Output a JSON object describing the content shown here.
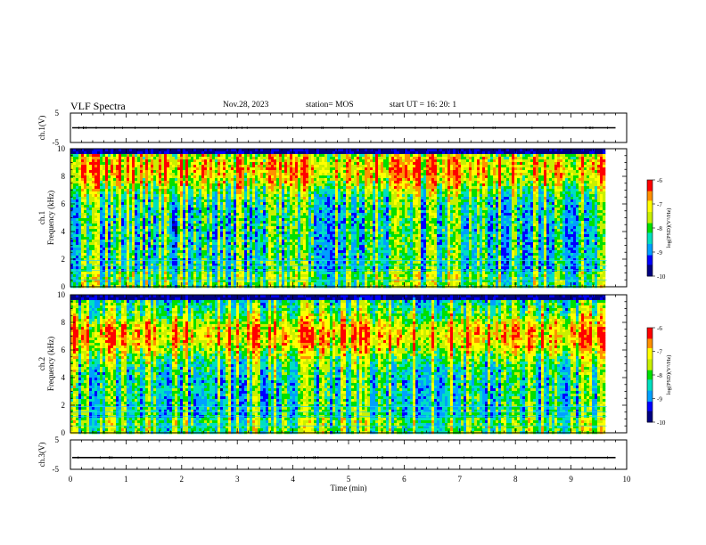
{
  "header": {
    "title": "VLF Spectra",
    "date": "Nov.28, 2023",
    "station": "station= MOS",
    "start": "start  UT =   16: 20: 1"
  },
  "chart_data": {
    "type": "heatmap",
    "xlabel": "Time  (min)",
    "xlim": [
      0,
      10
    ],
    "xticks": [
      "0",
      "1",
      "2",
      "3",
      "4",
      "5",
      "6",
      "7",
      "8",
      "9",
      "10"
    ],
    "data_end_min": 9.8,
    "panels": [
      {
        "id": "ch1v",
        "type": "line",
        "ylabel": "ch.1(V)",
        "ylim": [
          -5,
          5
        ],
        "yticks": [
          "5",
          "-5"
        ],
        "trace_level": 0
      },
      {
        "id": "ch1",
        "type": "heatmap",
        "ylabel_lines": [
          "ch.1",
          "Frequency  (kHz)"
        ],
        "ylim": [
          0,
          10
        ],
        "yticks": [
          "0",
          "2",
          "4",
          "6",
          "8",
          "10"
        ],
        "colorbar_label": "log(PSD)(V²/Hz)",
        "colorbar_range": [
          -10,
          -6
        ],
        "colorbar_ticks": [
          "-6",
          "-7",
          "-8",
          "-9",
          "-10"
        ],
        "power_peak_khz": 8.5,
        "sferic_density": 0.55
      },
      {
        "id": "ch2",
        "type": "heatmap",
        "ylabel_lines": [
          "ch.2",
          "Frequency  (kHz)"
        ],
        "ylim": [
          0,
          10
        ],
        "yticks": [
          "0",
          "2",
          "4",
          "6",
          "8",
          "10"
        ],
        "colorbar_label": "log(PSD)(V²/Hz)",
        "colorbar_range": [
          -10,
          -6
        ],
        "colorbar_ticks": [
          "-6",
          "-7",
          "-8",
          "-9",
          "-10"
        ],
        "power_peak_khz": 7.0,
        "sferic_density": 0.5
      },
      {
        "id": "ch3v",
        "type": "line",
        "ylabel": "ch.3(V)",
        "ylim": [
          -5,
          5
        ],
        "yticks": [
          "5",
          "-5"
        ],
        "trace_level": -1
      }
    ],
    "colormap": [
      "#000080",
      "#0000ff",
      "#00a0ff",
      "#00e0c0",
      "#00e000",
      "#c8f000",
      "#ffff00",
      "#ff9000",
      "#ff0000",
      "#ffffff"
    ]
  }
}
